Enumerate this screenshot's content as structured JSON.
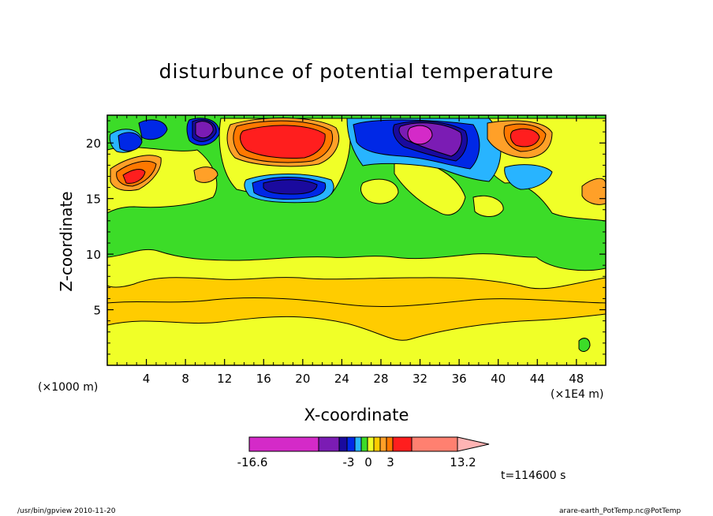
{
  "chart_data": {
    "type": "heatmap",
    "title": "disturbunce of potential temperature",
    "xlabel": "X-coordinate",
    "ylabel": "Z-coordinate",
    "x_unit_left": "(×1000 m)",
    "x_unit_right": "(×1E4 m)",
    "xlim": [
      0,
      51
    ],
    "ylim": [
      0,
      22.5
    ],
    "x_ticks": [
      4,
      8,
      12,
      16,
      20,
      24,
      28,
      32,
      36,
      40,
      44,
      48
    ],
    "y_ticks": [
      5,
      10,
      15,
      20
    ],
    "colorbar": {
      "min": -16.6,
      "max": 13.2,
      "tick_labels": [
        "-16.6",
        "-3",
        "0",
        "3",
        "13.2"
      ],
      "tick_values": [
        -16.6,
        -3,
        0,
        3,
        13.2
      ],
      "colors": [
        "#d42ac8",
        "#7b1cb4",
        "#1a0a9e",
        "#0028e6",
        "#28b4ff",
        "#3cdc28",
        "#f0ff28",
        "#ffcc00",
        "#ffa028",
        "#ff7800",
        "#ff1e1e",
        "#ff8070",
        "#ffb4b4"
      ]
    },
    "annotation": "t=114600 s"
  },
  "footer": {
    "left": "/usr/bin/gpview   2010-11-20",
    "right": "arare-earth_PotTemp.nc@PotTemp"
  }
}
